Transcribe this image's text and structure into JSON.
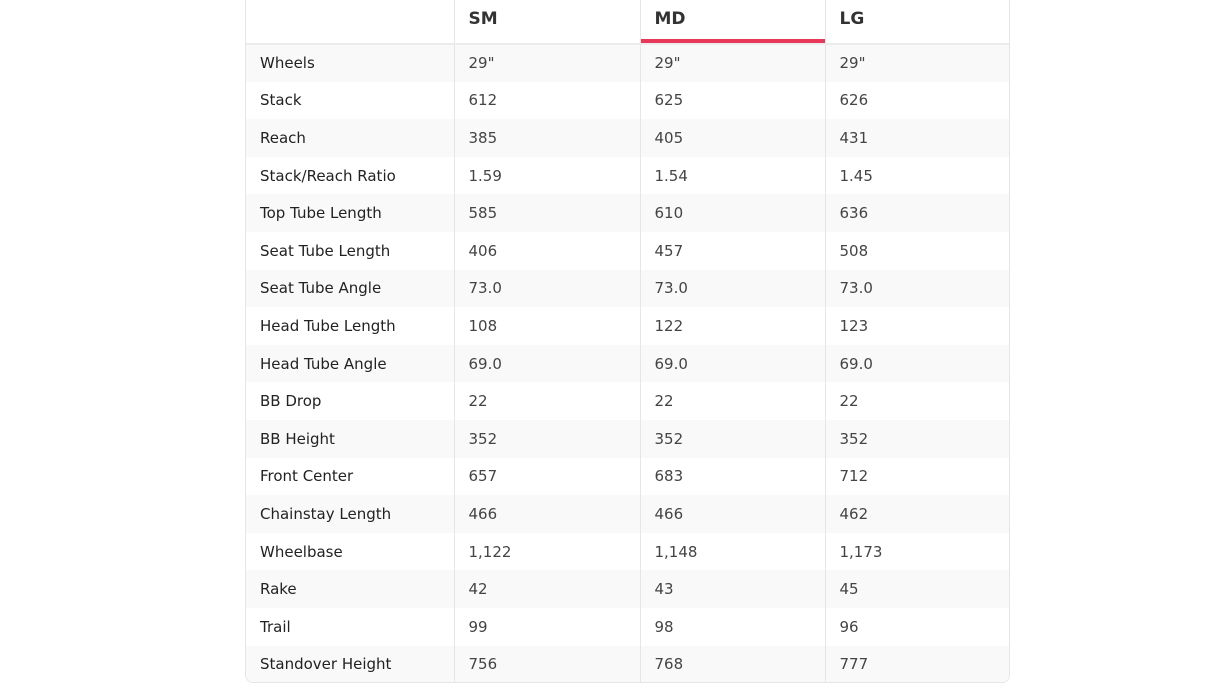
{
  "table": {
    "headers": [
      "",
      "SM",
      "MD",
      "LG"
    ],
    "active_header": "MD",
    "accent_color": "#e8385a",
    "rows": [
      [
        "Wheels",
        "29\"",
        "29\"",
        "29\""
      ],
      [
        "Stack",
        "612",
        "625",
        "626"
      ],
      [
        "Reach",
        "385",
        "405",
        "431"
      ],
      [
        "Stack/Reach Ratio",
        "1.59",
        "1.54",
        "1.45"
      ],
      [
        "Top Tube Length",
        "585",
        "610",
        "636"
      ],
      [
        "Seat Tube Length",
        "406",
        "457",
        "508"
      ],
      [
        "Seat Tube Angle",
        "73.0",
        "73.0",
        "73.0"
      ],
      [
        "Head Tube Length",
        "108",
        "122",
        "123"
      ],
      [
        "Head Tube Angle",
        "69.0",
        "69.0",
        "69.0"
      ],
      [
        "BB Drop",
        "22",
        "22",
        "22"
      ],
      [
        "BB Height",
        "352",
        "352",
        "352"
      ],
      [
        "Front Center",
        "657",
        "683",
        "712"
      ],
      [
        "Chainstay Length",
        "466",
        "466",
        "462"
      ],
      [
        "Wheelbase",
        "1,122",
        "1,148",
        "1,173"
      ],
      [
        "Rake",
        "42",
        "43",
        "45"
      ],
      [
        "Trail",
        "99",
        "98",
        "96"
      ],
      [
        "Standover Height",
        "756",
        "768",
        "777"
      ]
    ]
  }
}
